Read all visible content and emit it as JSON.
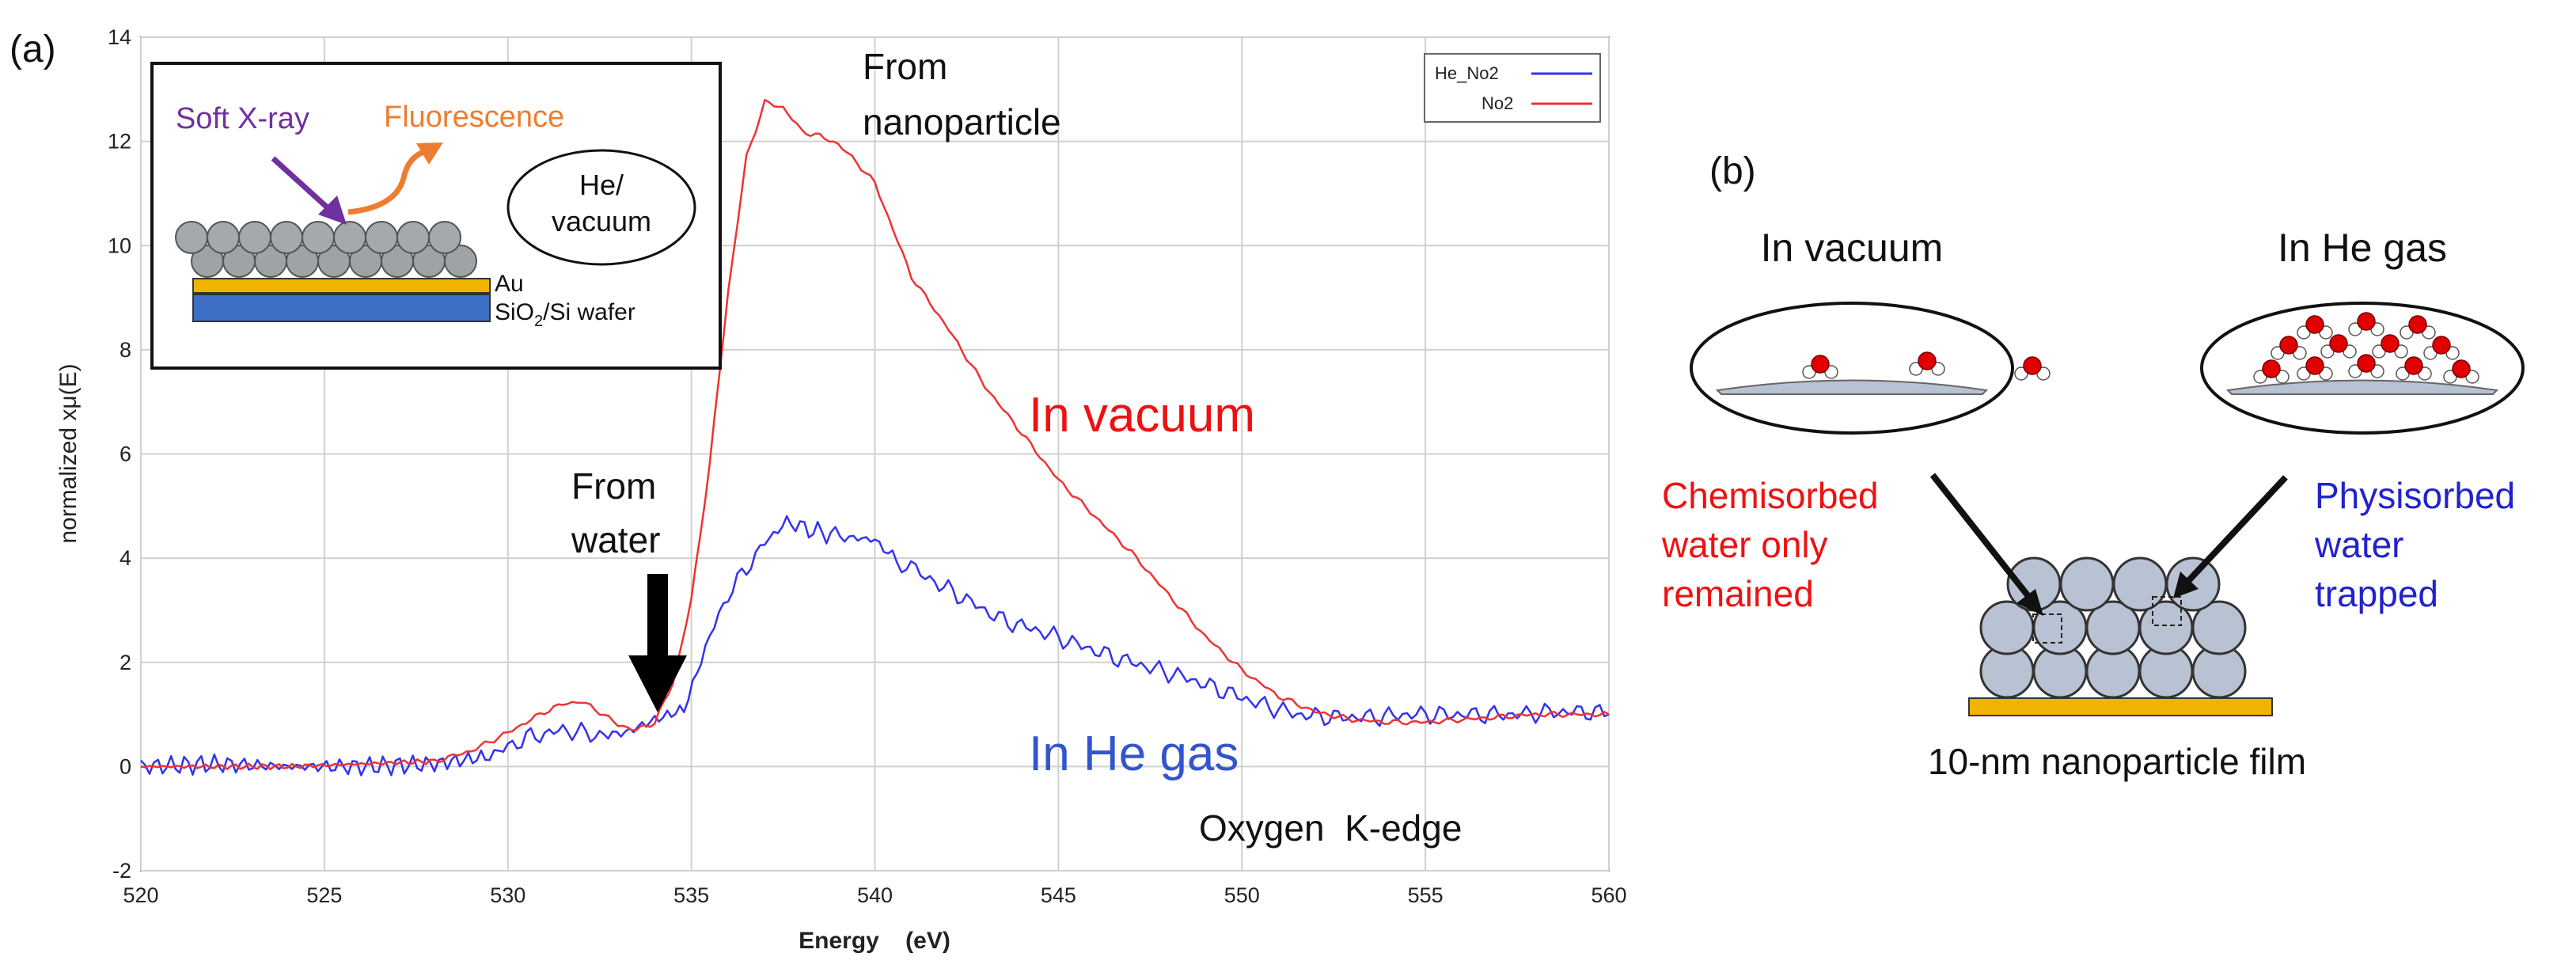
{
  "panel_a": {
    "label": "(a)",
    "annotations": {
      "from_nanoparticle_1": "From",
      "from_nanoparticle_2": "nanoparticle",
      "from_water_1": "From",
      "from_water_2": "water",
      "in_vacuum": "In vacuum",
      "in_he_gas": "In He gas",
      "edge": "Oxygen  K-edge"
    },
    "inset": {
      "soft_xray": "Soft X-ray",
      "fluorescence": "Fluorescence",
      "atmosphere_1": "He/",
      "atmosphere_2": "vacuum",
      "au": "Au",
      "substrate_pre": "SiO",
      "substrate_sub": "2",
      "substrate_post": "/Si wafer"
    }
  },
  "panel_b": {
    "label": "(b)",
    "vacuum_title": "In vacuum",
    "he_title": "In He gas",
    "chemisorbed": [
      "Chemisorbed",
      "water only",
      "remained"
    ],
    "physisorbed": [
      "Physisorbed",
      "water",
      "trapped"
    ],
    "film_caption": "10-nm nanoparticle film"
  },
  "colors": {
    "he_series": "#3333ee",
    "vac_series": "#ee3333",
    "annot_red": "#ee1111",
    "annot_blue": "#3355cc",
    "xray": "#7030a0",
    "fluor": "#ed7d31",
    "au": "#f0b400",
    "substrate": "#3d6fc4",
    "particle": "#b8c2d3",
    "water_o": "#e00000"
  },
  "chart_data": {
    "type": "line",
    "xlabel": "Energy    (eV)",
    "ylabel": "normalized xμ(E)",
    "xlim": [
      520,
      560
    ],
    "ylim": [
      -2,
      14
    ],
    "grid": true,
    "legend_position": "top-right",
    "x_ticks": [
      "520",
      "525",
      "530",
      "535",
      "540",
      "545",
      "550",
      "555",
      "560"
    ],
    "y_ticks": [
      "-2",
      "0",
      "2",
      "4",
      "6",
      "8",
      "10",
      "12",
      "14"
    ],
    "series": [
      {
        "name": "He_No2",
        "color": "#3333ee",
        "x": [
          520,
          522,
          524,
          526,
          528,
          529.5,
          530.5,
          531.5,
          532.5,
          533.2,
          534,
          534.8,
          535.5,
          536,
          536.5,
          537,
          537.6,
          538.2,
          538.8,
          539.3,
          540,
          540.6,
          541.5,
          542.5,
          543.5,
          544.5,
          545.5,
          546.5,
          547.5,
          548.5,
          549.5,
          550.5,
          551.5,
          552.5,
          553.5,
          554.5,
          555.5,
          556.5,
          557.5,
          558.5,
          559.5,
          560
        ],
        "y": [
          0.0,
          0.05,
          0.0,
          0.0,
          0.05,
          0.2,
          0.55,
          0.7,
          0.6,
          0.65,
          0.9,
          1.1,
          2.5,
          3.3,
          3.8,
          4.3,
          4.7,
          4.55,
          4.45,
          4.4,
          4.35,
          3.95,
          3.6,
          3.2,
          2.8,
          2.6,
          2.35,
          2.1,
          1.9,
          1.7,
          1.45,
          1.2,
          1.0,
          0.95,
          0.95,
          1.0,
          1.0,
          1.0,
          1.0,
          1.05,
          1.05,
          1.0
        ]
      },
      {
        "name": "No2",
        "color": "#ee3333",
        "x": [
          520,
          522,
          524,
          526,
          528,
          529,
          530,
          531,
          531.5,
          532,
          532.5,
          533,
          533.5,
          534,
          534.5,
          535,
          535.5,
          536,
          536.5,
          537,
          537.5,
          538,
          538.5,
          539,
          539.5,
          540,
          540.5,
          541,
          542,
          543,
          544,
          545,
          546,
          547,
          548,
          549,
          550,
          551,
          552,
          553,
          554,
          555,
          556,
          557,
          558,
          559,
          560
        ],
        "y": [
          0.0,
          0.0,
          0.0,
          0.05,
          0.1,
          0.3,
          0.65,
          1.05,
          1.2,
          1.25,
          1.05,
          0.8,
          0.7,
          0.85,
          1.6,
          3.2,
          5.8,
          9.1,
          11.7,
          12.75,
          12.65,
          12.2,
          12.1,
          11.95,
          11.6,
          11.2,
          10.3,
          9.4,
          8.4,
          7.3,
          6.4,
          5.5,
          4.8,
          4.1,
          3.3,
          2.5,
          1.85,
          1.35,
          1.05,
          0.9,
          0.85,
          0.85,
          0.9,
          0.95,
          1.0,
          1.0,
          1.0
        ]
      }
    ]
  }
}
